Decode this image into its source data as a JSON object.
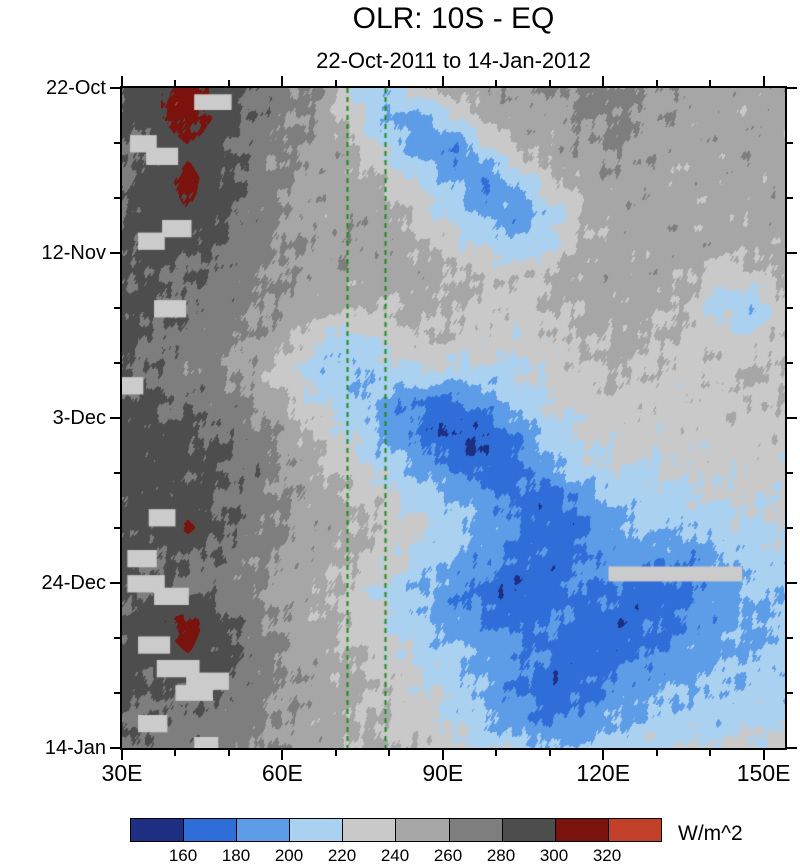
{
  "chart_data": {
    "type": "heatmap",
    "title": "OLR: 10S - EQ",
    "subtitle": "22-Oct-2011 to 14-Jan-2012",
    "units": "W/m^2",
    "x_axis": {
      "range_lon": [
        30,
        154
      ],
      "major": [
        {
          "lon": 30,
          "label": "30E"
        },
        {
          "lon": 60,
          "label": "60E"
        },
        {
          "lon": 90,
          "label": "90E"
        },
        {
          "lon": 120,
          "label": "120E"
        },
        {
          "lon": 150,
          "label": "150E"
        }
      ],
      "minor_lons": [
        40,
        50,
        70,
        80,
        100,
        110,
        130,
        140
      ]
    },
    "y_axis": {
      "range_days": [
        0,
        84
      ],
      "major": [
        {
          "day": 0,
          "label": "22-Oct"
        },
        {
          "day": 21,
          "label": "12-Nov"
        },
        {
          "day": 42,
          "label": "3-Dec"
        },
        {
          "day": 63,
          "label": "24-Dec"
        },
        {
          "day": 84,
          "label": "14-Jan"
        }
      ],
      "minor_days": [
        7,
        14,
        28,
        35,
        49,
        56,
        70,
        77
      ]
    },
    "levels": [
      160,
      180,
      200,
      220,
      240,
      260,
      280,
      300,
      320
    ],
    "palette": [
      "#1d2e83",
      "#2f6ed8",
      "#5d9ce6",
      "#abd1f0",
      "#c9c9c9",
      "#a6a6a6",
      "#7e7e7e",
      "#4d4d4d",
      "#7a120e",
      "#c2402a"
    ],
    "reference_lines": {
      "style": "dashed",
      "color": "#1f8a1f",
      "lons": [
        72,
        79.2
      ]
    },
    "grid": {
      "lon_start": 30,
      "lon_step": 6.2,
      "day_start": 0,
      "day_step": 4,
      "values": [
        [
          285,
          298,
          310,
          292,
          278,
          268,
          258,
          218,
          208,
          232,
          248,
          258,
          254,
          260,
          268,
          264,
          255,
          258,
          250,
          246,
          254
        ],
        [
          280,
          295,
          312,
          294,
          274,
          264,
          256,
          228,
          198,
          192,
          216,
          244,
          254,
          250,
          262,
          264,
          256,
          252,
          248,
          250,
          252
        ],
        [
          276,
          286,
          296,
          286,
          270,
          262,
          254,
          246,
          214,
          192,
          176,
          212,
          242,
          250,
          256,
          260,
          254,
          248,
          252,
          254,
          250
        ],
        [
          278,
          290,
          306,
          288,
          272,
          260,
          252,
          250,
          238,
          218,
          198,
          180,
          206,
          236,
          250,
          254,
          250,
          245,
          250,
          248,
          252
        ],
        [
          280,
          292,
          298,
          284,
          270,
          258,
          250,
          254,
          246,
          232,
          214,
          194,
          186,
          212,
          240,
          250,
          254,
          250,
          245,
          250,
          248
        ],
        [
          282,
          288,
          285,
          280,
          268,
          260,
          255,
          257,
          251,
          244,
          229,
          214,
          205,
          221,
          245,
          251,
          248,
          252,
          250,
          245,
          250
        ],
        [
          285,
          281,
          278,
          275,
          265,
          258,
          252,
          250,
          248,
          250,
          245,
          239,
          234,
          244,
          250,
          248,
          252,
          245,
          228,
          232,
          246
        ],
        [
          288,
          282,
          275,
          272,
          262,
          255,
          250,
          245,
          240,
          245,
          240,
          235,
          230,
          240,
          245,
          250,
          245,
          240,
          212,
          202,
          232
        ],
        [
          285,
          278,
          272,
          268,
          258,
          248,
          218,
          208,
          226,
          241,
          236,
          231,
          226,
          236,
          241,
          246,
          241,
          236,
          231,
          226,
          241
        ],
        [
          282,
          275,
          268,
          262,
          250,
          226,
          206,
          201,
          211,
          221,
          216,
          211,
          216,
          226,
          236,
          241,
          236,
          231,
          236,
          241,
          239
        ],
        [
          286,
          281,
          276,
          271,
          261,
          241,
          221,
          206,
          191,
          177,
          172,
          191,
          211,
          221,
          231,
          236,
          231,
          229,
          233,
          237,
          236
        ],
        [
          290,
          288,
          285,
          278,
          268,
          252,
          235,
          215,
          195,
          175,
          158,
          161,
          186,
          211,
          223,
          229,
          227,
          231,
          229,
          233,
          231
        ],
        [
          292,
          290,
          288,
          282,
          272,
          258,
          242,
          225,
          210,
          195,
          176,
          166,
          176,
          201,
          216,
          221,
          219,
          225,
          227,
          229,
          227
        ],
        [
          290,
          288,
          285,
          280,
          270,
          258,
          248,
          240,
          228,
          212,
          198,
          186,
          173,
          169,
          191,
          206,
          211,
          216,
          221,
          223,
          225
        ],
        [
          288,
          285,
          304,
          282,
          270,
          260,
          252,
          245,
          235,
          222,
          208,
          195,
          181,
          166,
          176,
          196,
          206,
          201,
          211,
          216,
          219
        ],
        [
          285,
          282,
          278,
          275,
          265,
          255,
          248,
          240,
          228,
          212,
          198,
          186,
          176,
          171,
          181,
          191,
          186,
          181,
          196,
          206,
          211
        ],
        [
          282,
          280,
          278,
          272,
          262,
          252,
          244,
          232,
          215,
          200,
          185,
          171,
          161,
          171,
          181,
          176,
          166,
          176,
          191,
          201,
          206
        ],
        [
          285,
          296,
          308,
          286,
          268,
          255,
          245,
          235,
          220,
          205,
          190,
          181,
          173,
          179,
          173,
          166,
          173,
          181,
          191,
          196,
          201
        ],
        [
          288,
          292,
          299,
          288,
          272,
          258,
          248,
          240,
          228,
          215,
          205,
          195,
          186,
          176,
          166,
          173,
          181,
          189,
          196,
          201,
          206
        ],
        [
          285,
          282,
          278,
          280,
          270,
          260,
          252,
          245,
          238,
          225,
          210,
          195,
          178,
          166,
          173,
          186,
          193,
          199,
          203,
          206,
          209
        ],
        [
          282,
          278,
          275,
          272,
          265,
          256,
          248,
          242,
          236,
          228,
          215,
          200,
          186,
          176,
          186,
          196,
          203,
          209,
          207,
          211,
          215
        ],
        [
          280,
          276,
          272,
          270,
          264,
          256,
          250,
          246,
          242,
          236,
          228,
          218,
          208,
          201,
          206,
          213,
          219,
          223,
          221,
          225,
          227
        ]
      ]
    },
    "missing_blocks": {
      "color": "#cbcbcb",
      "rects": [
        [
          43.5,
          50.5,
          0.8,
          2.8
        ],
        [
          31.5,
          36.5,
          6.0,
          8.2
        ],
        [
          34.5,
          40.5,
          7.6,
          9.8
        ],
        [
          37.5,
          43.0,
          16.8,
          19.0
        ],
        [
          33.0,
          38.0,
          18.4,
          20.6
        ],
        [
          36.0,
          42.0,
          27.0,
          29.2
        ],
        [
          30.0,
          34.0,
          36.8,
          39.0
        ],
        [
          35.0,
          40.0,
          53.6,
          55.8
        ],
        [
          31.0,
          36.5,
          58.8,
          61.0
        ],
        [
          121.0,
          146.0,
          60.9,
          62.8
        ],
        [
          31.0,
          38.0,
          62.0,
          64.2
        ],
        [
          36.0,
          42.5,
          63.6,
          65.8
        ],
        [
          33.0,
          39.0,
          69.8,
          72.0
        ],
        [
          36.5,
          44.5,
          72.8,
          75.0
        ],
        [
          42.0,
          50.0,
          74.4,
          76.6
        ],
        [
          40.0,
          47.0,
          76.0,
          78.0
        ],
        [
          33.0,
          38.5,
          79.8,
          82.0
        ],
        [
          43.5,
          48.0,
          82.6,
          84.0
        ]
      ]
    }
  }
}
